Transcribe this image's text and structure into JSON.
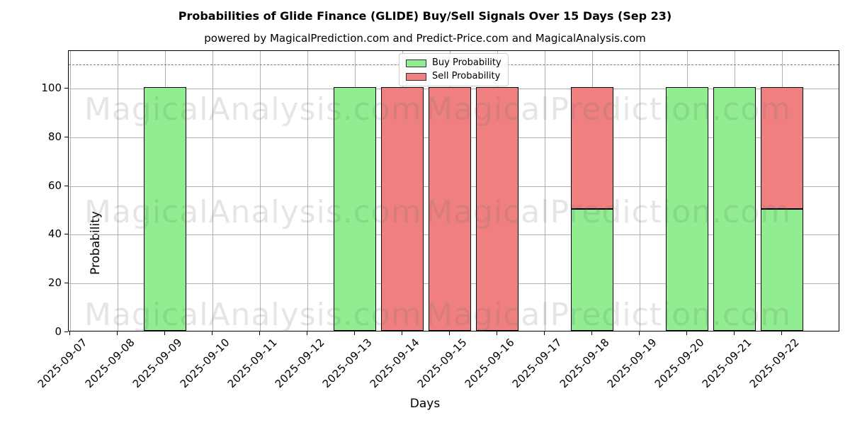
{
  "title": "Probabilities of Glide Finance (GLIDE) Buy/Sell Signals Over 15 Days (Sep 23)",
  "subtitle": "powered by MagicalPrediction.com and Predict-Price.com and MagicalAnalysis.com",
  "axes": {
    "xlabel": "Days",
    "ylabel": "Probability",
    "yticks": [
      0,
      20,
      40,
      60,
      80,
      100
    ]
  },
  "legend": {
    "items": [
      {
        "label": "Buy Probability",
        "color": "#90ee90"
      },
      {
        "label": "Sell Probability",
        "color": "#f08080"
      }
    ]
  },
  "watermarks": {
    "left_text": "MagicalAnalysis.com",
    "right_text": "MagicalPrediction.com"
  },
  "chart_data": {
    "type": "bar",
    "stacked": true,
    "title": "Probabilities of Glide Finance (GLIDE) Buy/Sell Signals Over 15 Days (Sep 23)",
    "subtitle": "powered by MagicalPrediction.com and Predict-Price.com and MagicalAnalysis.com",
    "xlabel": "Days",
    "ylabel": "Probability",
    "ylim": [
      0,
      115
    ],
    "yticks": [
      0,
      20,
      40,
      60,
      80,
      100
    ],
    "grid": true,
    "dashed_line_y": 110,
    "legend_position": "upper center",
    "bar_colors": {
      "buy": "#90ee90",
      "sell": "#f08080",
      "edge": "#000000"
    },
    "categories": [
      "2025-09-07",
      "2025-09-08",
      "2025-09-09",
      "2025-09-10",
      "2025-09-11",
      "2025-09-12",
      "2025-09-13",
      "2025-09-14",
      "2025-09-15",
      "2025-09-16",
      "2025-09-17",
      "2025-09-18",
      "2025-09-19",
      "2025-09-20",
      "2025-09-21",
      "2025-09-22"
    ],
    "series": [
      {
        "name": "Buy Probability",
        "color": "#90ee90",
        "values": [
          0,
          0,
          100,
          0,
          0,
          0,
          100,
          0,
          0,
          0,
          0,
          50,
          0,
          100,
          100,
          50
        ]
      },
      {
        "name": "Sell Probability",
        "color": "#f08080",
        "values": [
          0,
          0,
          0,
          0,
          0,
          0,
          0,
          100,
          100,
          100,
          0,
          50,
          0,
          0,
          0,
          50
        ]
      }
    ]
  }
}
